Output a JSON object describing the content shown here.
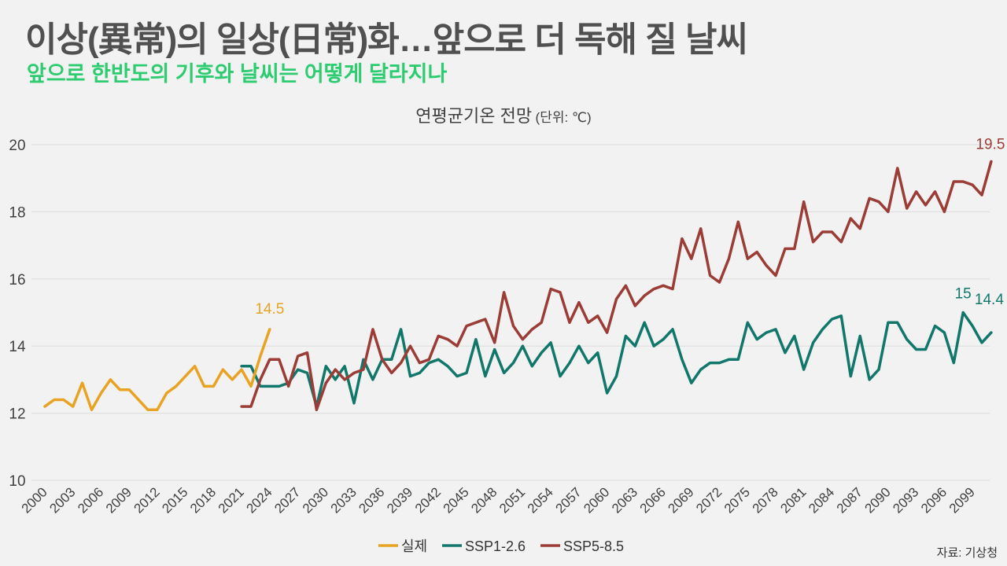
{
  "header": {
    "title": "이상(異常)의 일상(日常)화…앞으로 더 독해 질 날씨",
    "subtitle": "앞으로 한반도의 기후와 날씨는 어떻게 달라지나"
  },
  "source": "자료: 기상청",
  "colors": {
    "actual": "#e8a323",
    "ssp126": "#12776b",
    "ssp585": "#9b3d36",
    "grid": "#dcdcdc",
    "axis_text": "#404040"
  },
  "chart_data": {
    "type": "line",
    "title": "연평균기온 전망",
    "unit_label": "(단위: ℃)",
    "xlabel": "",
    "ylabel": "",
    "ylim": [
      10,
      20
    ],
    "xlim": [
      2000,
      2100
    ],
    "yticks": [
      "10",
      "12",
      "14",
      "16",
      "18",
      "20"
    ],
    "xticks": [
      "2000",
      "2003",
      "2006",
      "2009",
      "2012",
      "2015",
      "2018",
      "2021",
      "2024",
      "2027",
      "2030",
      "2033",
      "2036",
      "2039",
      "2042",
      "2045",
      "2048",
      "2051",
      "2054",
      "2057",
      "2060",
      "2063",
      "2066",
      "2069",
      "2072",
      "2075",
      "2078",
      "2081",
      "2084",
      "2087",
      "2090",
      "2093",
      "2096",
      "2099"
    ],
    "grid": true,
    "legend_position": "bottom-center",
    "series": [
      {
        "name": "실제",
        "key": "actual",
        "start_year": 2000,
        "values": [
          12.2,
          12.4,
          12.4,
          12.2,
          12.9,
          12.1,
          12.6,
          13.0,
          12.7,
          12.7,
          12.4,
          12.1,
          12.1,
          12.6,
          12.8,
          13.1,
          13.4,
          12.8,
          12.8,
          13.3,
          13.0,
          13.3,
          12.8,
          13.7,
          14.5
        ],
        "end_label": "14.5"
      },
      {
        "name": "SSP1-2.6",
        "key": "ssp126",
        "start_year": 2021,
        "values": [
          13.4,
          13.4,
          12.8,
          12.8,
          12.8,
          12.9,
          13.3,
          13.2,
          12.2,
          13.4,
          13.0,
          13.4,
          12.3,
          13.6,
          13.0,
          13.6,
          13.6,
          14.5,
          13.1,
          13.2,
          13.5,
          13.6,
          13.4,
          13.1,
          13.2,
          14.2,
          13.1,
          13.9,
          13.2,
          13.5,
          14.0,
          13.4,
          13.8,
          14.1,
          13.1,
          13.5,
          14.0,
          13.5,
          13.8,
          12.6,
          13.1,
          14.3,
          14.0,
          14.7,
          14.0,
          14.2,
          14.5,
          13.6,
          12.9,
          13.3,
          13.5,
          13.5,
          13.6,
          13.6,
          14.7,
          14.2,
          14.4,
          14.5,
          13.8,
          14.3,
          13.3,
          14.1,
          14.5,
          14.8,
          14.9,
          13.1,
          14.3,
          13.0,
          13.3,
          14.7,
          14.7,
          14.2,
          13.9,
          13.9,
          14.6,
          14.4,
          13.5,
          15.0,
          14.6,
          14.1,
          14.4
        ],
        "peak_label": "15",
        "end_label": "14.4"
      },
      {
        "name": "SSP5-8.5",
        "key": "ssp585",
        "start_year": 2021,
        "values": [
          12.2,
          12.2,
          13.0,
          13.6,
          13.6,
          12.8,
          13.7,
          13.8,
          12.1,
          12.9,
          13.3,
          13.0,
          13.2,
          13.3,
          14.5,
          13.6,
          13.2,
          13.5,
          14.0,
          13.5,
          13.6,
          14.3,
          14.2,
          14.0,
          14.6,
          14.7,
          14.8,
          14.1,
          15.6,
          14.6,
          14.2,
          14.5,
          14.7,
          15.7,
          15.6,
          14.7,
          15.3,
          14.7,
          14.9,
          14.4,
          15.4,
          15.8,
          15.2,
          15.5,
          15.7,
          15.8,
          15.7,
          17.2,
          16.6,
          17.5,
          16.1,
          15.9,
          16.6,
          17.7,
          16.6,
          16.8,
          16.4,
          16.1,
          16.9,
          16.9,
          18.3,
          17.1,
          17.4,
          17.4,
          17.1,
          17.8,
          17.5,
          18.4,
          18.3,
          18.0,
          19.3,
          18.1,
          18.6,
          18.2,
          18.6,
          18.0,
          18.9,
          18.9,
          18.8,
          18.5,
          19.5
        ],
        "end_label": "19.5"
      }
    ]
  }
}
